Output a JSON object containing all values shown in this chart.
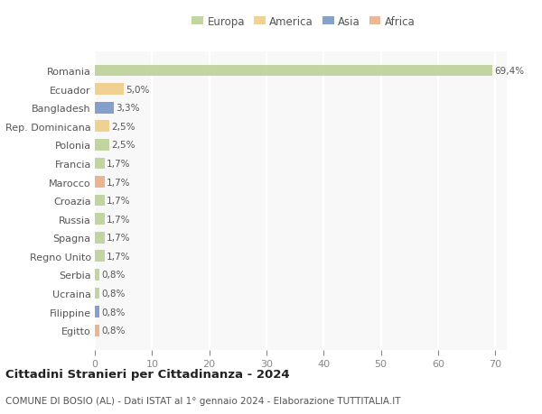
{
  "countries": [
    "Romania",
    "Ecuador",
    "Bangladesh",
    "Rep. Dominicana",
    "Polonia",
    "Francia",
    "Marocco",
    "Croazia",
    "Russia",
    "Spagna",
    "Regno Unito",
    "Serbia",
    "Ucraina",
    "Filippine",
    "Egitto"
  ],
  "values": [
    69.4,
    5.0,
    3.3,
    2.5,
    2.5,
    1.7,
    1.7,
    1.7,
    1.7,
    1.7,
    1.7,
    0.8,
    0.8,
    0.8,
    0.8
  ],
  "labels": [
    "69,4%",
    "5,0%",
    "3,3%",
    "2,5%",
    "2,5%",
    "1,7%",
    "1,7%",
    "1,7%",
    "1,7%",
    "1,7%",
    "1,7%",
    "0,8%",
    "0,8%",
    "0,8%",
    "0,8%"
  ],
  "continents": [
    "Europa",
    "America",
    "Asia",
    "America",
    "Europa",
    "Europa",
    "Africa",
    "Europa",
    "Europa",
    "Europa",
    "Europa",
    "Europa",
    "Europa",
    "Asia",
    "Africa"
  ],
  "colors": {
    "Europa": "#b5cc8e",
    "America": "#f0c97a",
    "Asia": "#6b8cbf",
    "Africa": "#e8a87c"
  },
  "title": "Cittadini Stranieri per Cittadinanza - 2024",
  "subtitle": "COMUNE DI BOSIO (AL) - Dati ISTAT al 1° gennaio 2024 - Elaborazione TUTTITALIA.IT",
  "xlim": [
    0,
    72
  ],
  "xticks": [
    0,
    10,
    20,
    30,
    40,
    50,
    60,
    70
  ],
  "bg_color": "#f8f8f8",
  "grid_color": "#ffffff",
  "bar_height": 0.62,
  "legend_order": [
    "Europa",
    "America",
    "Asia",
    "Africa"
  ]
}
